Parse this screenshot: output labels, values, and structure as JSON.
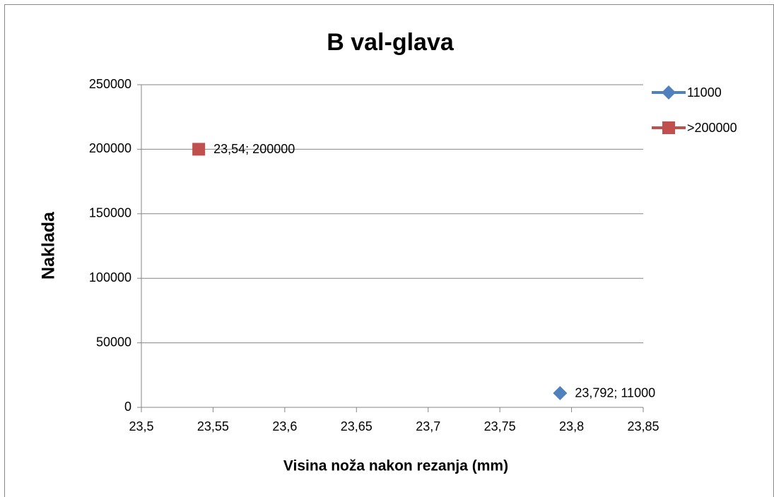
{
  "chart_data": {
    "type": "scatter",
    "title": "B val-glava",
    "xlabel": "Visina noža nakon rezanja (mm)",
    "ylabel": "Naklada",
    "series": [
      {
        "name": "11000",
        "color": "#4f81bd",
        "marker": "diamond",
        "x": [
          23.792
        ],
        "values": [
          11000
        ],
        "value_labels": [
          "23,792; 11000"
        ]
      },
      {
        "name": ">200000",
        "color": "#c0504d",
        "marker": "square",
        "x": [
          23.54
        ],
        "values": [
          200000
        ],
        "value_labels": [
          "23,54; 200000"
        ]
      }
    ],
    "xlim": [
      23.5,
      23.85
    ],
    "xticks": [
      {
        "value": 23.5,
        "label": "23,5"
      },
      {
        "value": 23.55,
        "label": "23,55"
      },
      {
        "value": 23.6,
        "label": "23,6"
      },
      {
        "value": 23.65,
        "label": "23,65"
      },
      {
        "value": 23.7,
        "label": "23,7"
      },
      {
        "value": 23.75,
        "label": "23,75"
      },
      {
        "value": 23.8,
        "label": "23,8"
      },
      {
        "value": 23.85,
        "label": "23,85"
      }
    ],
    "ylim": [
      0,
      250000
    ],
    "yticks": [
      0,
      50000,
      100000,
      150000,
      200000,
      250000
    ],
    "grid": true,
    "legend": "right"
  }
}
